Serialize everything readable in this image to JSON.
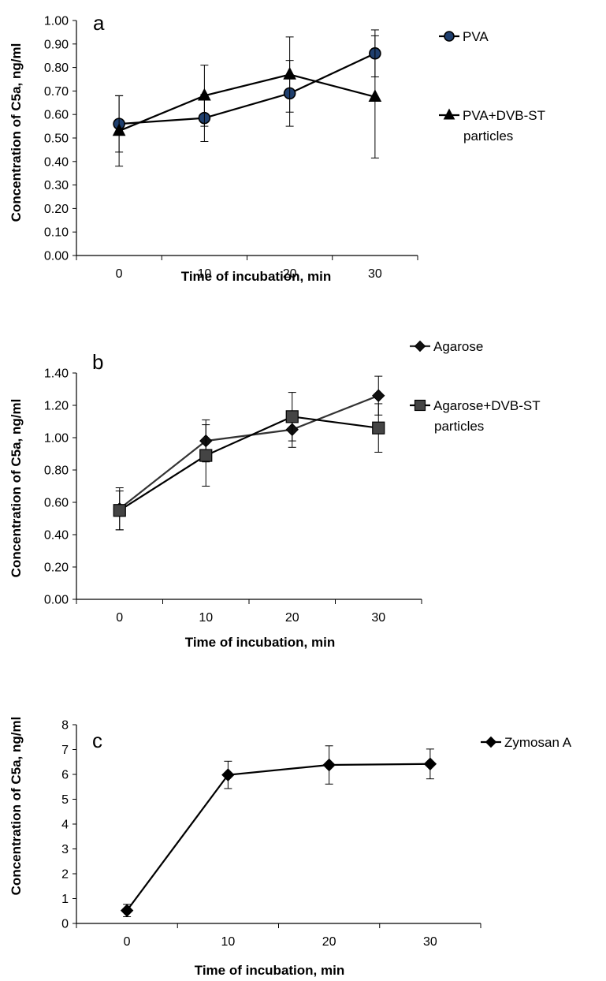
{
  "chart_data": [
    {
      "type": "line",
      "panel_label": "a",
      "x": [
        0,
        10,
        20,
        30
      ],
      "xlabel": "Time of incubation, min",
      "ylabel": "Concentration of C5a, ng/ml",
      "ylim": [
        0,
        1.0
      ],
      "yticks": [
        "0.00",
        "0.10",
        "0.20",
        "0.30",
        "0.40",
        "0.50",
        "0.60",
        "0.70",
        "0.80",
        "0.90",
        "1.00"
      ],
      "xticks": [
        "0",
        "10",
        "20",
        "30"
      ],
      "grid": false,
      "legend_position": "right",
      "series": [
        {
          "name": "PVA",
          "marker": "circle",
          "color": "#000000",
          "marker_fill": "#1f3f6e",
          "values": [
            0.56,
            0.585,
            0.69,
            0.86
          ],
          "errors": [
            0.12,
            0.1,
            0.14,
            0.1
          ]
        },
        {
          "name": "PVA+DVB-ST particles",
          "legend_lines": [
            "PVA+DVB-ST",
            "particles"
          ],
          "marker": "triangle",
          "color": "#000000",
          "marker_fill": "#000000",
          "values": [
            0.53,
            0.68,
            0.77,
            0.675
          ],
          "errors": [
            0.15,
            0.13,
            0.16,
            0.26
          ]
        }
      ]
    },
    {
      "type": "line",
      "panel_label": "b",
      "x": [
        0,
        10,
        20,
        30
      ],
      "xlabel": "Time of incubation, min",
      "ylabel": "Concentration of C5a, ng/ml",
      "ylim": [
        0,
        1.4
      ],
      "yticks": [
        "0.00",
        "0.20",
        "0.40",
        "0.60",
        "0.80",
        "1.00",
        "1.20",
        "1.40"
      ],
      "xticks": [
        "0",
        "10",
        "20",
        "30"
      ],
      "grid": false,
      "legend_position": "right",
      "series": [
        {
          "name": "Agarose",
          "marker": "diamond",
          "color": "#333333",
          "marker_fill": "#111111",
          "values": [
            0.56,
            0.98,
            1.05,
            1.26
          ],
          "errors": [
            0.13,
            0.13,
            0.11,
            0.12
          ]
        },
        {
          "name": "Agarose+DVB-ST particles",
          "legend_lines": [
            "Agarose+DVB-ST",
            "particles"
          ],
          "marker": "square",
          "color": "#000000",
          "marker_fill": "#444444",
          "values": [
            0.55,
            0.89,
            1.13,
            1.06
          ],
          "errors": [
            0.12,
            0.19,
            0.15,
            0.15
          ]
        }
      ]
    },
    {
      "type": "line",
      "panel_label": "c",
      "x": [
        0,
        10,
        20,
        30
      ],
      "xlabel": "Time of incubation, min",
      "ylabel": "Concentration of C5a, ng/ml",
      "ylim": [
        0,
        8
      ],
      "yticks": [
        "0",
        "1",
        "2",
        "3",
        "4",
        "5",
        "6",
        "7",
        "8"
      ],
      "xticks": [
        "0",
        "10",
        "20",
        "30"
      ],
      "grid": false,
      "legend_position": "right",
      "series": [
        {
          "name": "Zymosan A",
          "marker": "diamond",
          "color": "#000000",
          "marker_fill": "#000000",
          "values": [
            0.52,
            5.98,
            6.38,
            6.42
          ],
          "errors": [
            0.25,
            0.55,
            0.77,
            0.6
          ]
        }
      ]
    }
  ]
}
